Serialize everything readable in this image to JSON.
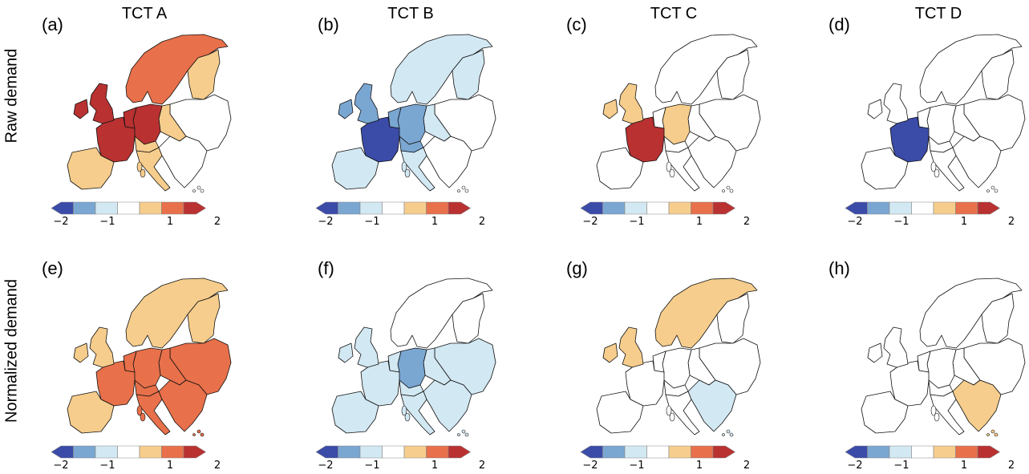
{
  "row_labels": [
    "Raw demand",
    "Normalized demand"
  ],
  "column_titles": [
    "TCT A",
    "TCT B",
    "TCT C",
    "TCT D"
  ],
  "panel_labels": [
    "(a)",
    "(b)",
    "(c)",
    "(d)",
    "(e)",
    "(f)",
    "(g)",
    "(h)"
  ],
  "colorbar": {
    "colors": [
      "#3b4ba8",
      "#7aa6d2",
      "#d2e8f3",
      "#ffffff",
      "#f6cd8c",
      "#e8704a",
      "#b93131"
    ],
    "extend": "both",
    "ticks": [
      "−2",
      "−1",
      "1",
      "2"
    ]
  },
  "country_levels_legend": "values 0..6 index into colorbar.colors (3 = neutral white)",
  "panels": [
    {
      "uk": 6,
      "fr": 6,
      "de": 6,
      "scan": 5,
      "fi": 4,
      "pl": 4,
      "ib": 4,
      "it": 4,
      "ch": 4,
      "ie": 6,
      "nl": 6,
      "east": 3,
      "balk": 3
    },
    {
      "uk": 1,
      "fr": 0,
      "de": 1,
      "scan": 2,
      "fi": 2,
      "pl": 2,
      "ib": 2,
      "it": 2,
      "ch": 1,
      "ie": 1,
      "nl": 1,
      "east": 3,
      "balk": 3
    },
    {
      "uk": 4,
      "fr": 6,
      "de": 4,
      "scan": 3,
      "fi": 3,
      "pl": 3,
      "ib": 3,
      "it": 3,
      "ch": 3,
      "ie": 4,
      "nl": 3,
      "east": 3,
      "balk": 3
    },
    {
      "uk": 3,
      "fr": 0,
      "de": 3,
      "scan": 3,
      "fi": 3,
      "pl": 3,
      "ib": 3,
      "it": 3,
      "ch": 3,
      "ie": 3,
      "nl": 3,
      "east": 3,
      "balk": 3
    },
    {
      "uk": 4,
      "fr": 5,
      "de": 5,
      "scan": 4,
      "fi": 4,
      "pl": 5,
      "ib": 4,
      "it": 5,
      "ch": 5,
      "ie": 4,
      "nl": 5,
      "east": 5,
      "balk": 5
    },
    {
      "uk": 2,
      "fr": 2,
      "de": 1,
      "scan": 3,
      "fi": 3,
      "pl": 2,
      "ib": 2,
      "it": 2,
      "ch": 2,
      "ie": 2,
      "nl": 2,
      "east": 2,
      "balk": 2
    },
    {
      "uk": 4,
      "fr": 3,
      "de": 3,
      "scan": 4,
      "fi": 3,
      "pl": 3,
      "ib": 3,
      "it": 3,
      "ch": 3,
      "ie": 4,
      "nl": 3,
      "east": 3,
      "balk": 2
    },
    {
      "uk": 3,
      "fr": 3,
      "de": 3,
      "scan": 3,
      "fi": 3,
      "pl": 3,
      "ib": 3,
      "it": 3,
      "ch": 3,
      "ie": 3,
      "nl": 3,
      "east": 3,
      "balk": 4
    }
  ]
}
